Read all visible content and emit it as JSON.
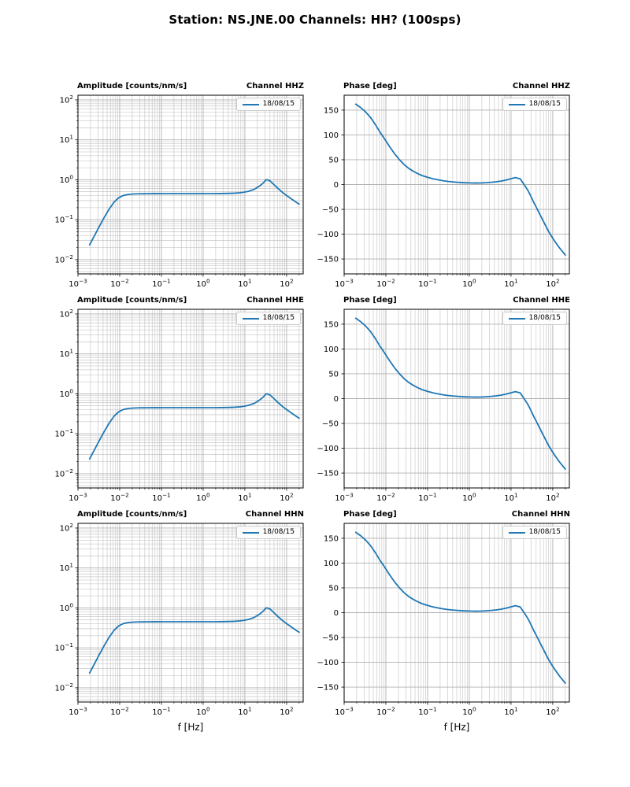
{
  "page": {
    "title": "Station: NS.JNE.00 Channels: HH? (100sps)"
  },
  "chart_data": {
    "type": "line",
    "x_label": "f [Hz]",
    "legend_label": "18/08/15",
    "line_color": "#1f77b4",
    "grid_color": "#b0b0b0",
    "legend_position": "upper right",
    "grid": "major+minor",
    "frequency_hz": [
      0.0019,
      0.0025,
      0.0033,
      0.0043,
      0.0056,
      0.0073,
      0.0095,
      0.0124,
      0.0162,
      0.0212,
      0.0276,
      0.0361,
      0.0471,
      0.0615,
      0.0803,
      0.105,
      0.137,
      0.179,
      0.233,
      0.305,
      0.398,
      0.519,
      0.678,
      0.885,
      1.16,
      1.51,
      1.97,
      2.57,
      3.36,
      4.38,
      5.72,
      7.47,
      9.75,
      12.7,
      16.6,
      21.7,
      25,
      28.5,
      32,
      36,
      41,
      48.3,
      63,
      82.3,
      107,
      140,
      183,
      200
    ],
    "series": [
      {
        "name": "amplitude_counts_per_nm_s",
        "values": [
          0.0234,
          0.0403,
          0.0697,
          0.116,
          0.185,
          0.274,
          0.356,
          0.407,
          0.43,
          0.441,
          0.445,
          0.447,
          0.448,
          0.449,
          0.449,
          0.45,
          0.45,
          0.45,
          0.45,
          0.45,
          0.45,
          0.45,
          0.45,
          0.45,
          0.45,
          0.45,
          0.451,
          0.452,
          0.454,
          0.457,
          0.462,
          0.472,
          0.49,
          0.52,
          0.575,
          0.68,
          0.76,
          0.86,
          1.0,
          0.99,
          0.92,
          0.78,
          0.6,
          0.47,
          0.385,
          0.315,
          0.26,
          0.245
        ]
      },
      {
        "name": "phase_deg",
        "values": [
          162,
          155,
          146,
          135,
          121,
          105,
          91,
          76,
          62,
          50,
          40,
          32,
          26,
          21,
          17,
          14,
          11.5,
          9.5,
          7.8,
          6.4,
          5.3,
          4.5,
          3.9,
          3.5,
          3.2,
          3.1,
          3.3,
          3.8,
          4.5,
          5.5,
          7,
          9,
          11.5,
          14,
          11.5,
          -3,
          -11,
          -20,
          -29,
          -38,
          -47,
          -59,
          -78,
          -97,
          -112,
          -126,
          -138,
          -142
        ]
      }
    ],
    "subplots": [
      {
        "title": "Amplitude [counts/nm/s]",
        "channel": "Channel HHZ",
        "series": "amplitude_counts_per_nm_s",
        "scale": "loglog",
        "xlim": [
          0.001,
          250
        ],
        "ylim": [
          0.0044,
          131
        ],
        "x_tick_exponents": [
          -3,
          -2,
          -1,
          0,
          1,
          2
        ],
        "y_tick_exponents": [
          2,
          1,
          0,
          -1,
          -2
        ]
      },
      {
        "title": "Phase [deg]",
        "channel": "Channel HHZ",
        "series": "phase_deg",
        "scale": "semilogx",
        "xlim": [
          0.001,
          250
        ],
        "ylim": [
          -180,
          180
        ],
        "x_tick_exponents": [
          -3,
          -2,
          -1,
          0,
          1,
          2
        ],
        "y_ticks": [
          150,
          100,
          50,
          0,
          -50,
          -100,
          -150
        ]
      },
      {
        "title": "Amplitude [counts/nm/s]",
        "channel": "Channel HHE",
        "series": "amplitude_counts_per_nm_s",
        "scale": "loglog",
        "xlim": [
          0.001,
          250
        ],
        "ylim": [
          0.0044,
          131
        ],
        "x_tick_exponents": [
          -3,
          -2,
          -1,
          0,
          1,
          2
        ],
        "y_tick_exponents": [
          2,
          1,
          0,
          -1,
          -2
        ]
      },
      {
        "title": "Phase [deg]",
        "channel": "Channel HHE",
        "series": "phase_deg",
        "scale": "semilogx",
        "xlim": [
          0.001,
          250
        ],
        "ylim": [
          -180,
          180
        ],
        "x_tick_exponents": [
          -3,
          -2,
          -1,
          0,
          1,
          2
        ],
        "y_ticks": [
          150,
          100,
          50,
          0,
          -50,
          -100,
          -150
        ]
      },
      {
        "title": "Amplitude [counts/nm/s]",
        "channel": "Channel HHN",
        "series": "amplitude_counts_per_nm_s",
        "scale": "loglog",
        "xlim": [
          0.001,
          250
        ],
        "ylim": [
          0.0044,
          131
        ],
        "x_tick_exponents": [
          -3,
          -2,
          -1,
          0,
          1,
          2
        ],
        "y_tick_exponents": [
          2,
          1,
          0,
          -1,
          -2
        ],
        "xlabel": "f [Hz]"
      },
      {
        "title": "Phase [deg]",
        "channel": "Channel HHN",
        "series": "phase_deg",
        "scale": "semilogx",
        "xlim": [
          0.001,
          250
        ],
        "ylim": [
          -180,
          180
        ],
        "x_tick_exponents": [
          -3,
          -2,
          -1,
          0,
          1,
          2
        ],
        "y_ticks": [
          150,
          100,
          50,
          0,
          -50,
          -100,
          -150
        ],
        "xlabel": "f [Hz]"
      }
    ]
  }
}
